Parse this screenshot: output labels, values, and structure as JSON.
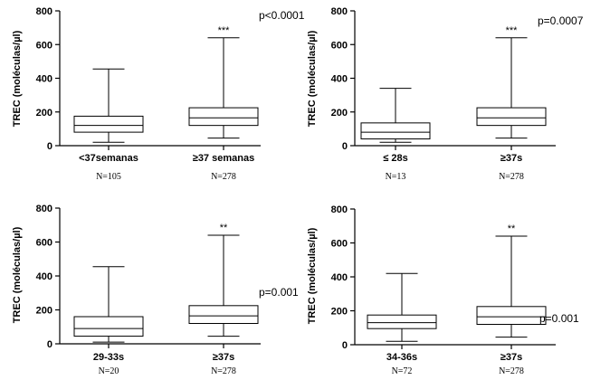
{
  "chart_data": [
    {
      "type": "box",
      "ylabel": "TREC (moléculas/µl)",
      "ylim": [
        0,
        800
      ],
      "yticks": [
        "0",
        "200",
        "400",
        "600",
        "800"
      ],
      "pvalue": "p<0.0001",
      "categories": [
        "<37semanas",
        "≥37 semanas"
      ],
      "significance": [
        "",
        "***"
      ],
      "n_labels": [
        "N=105",
        "N=278"
      ],
      "boxes": [
        {
          "min": 20,
          "q1": 80,
          "median": 120,
          "q3": 175,
          "max": 455
        },
        {
          "min": 45,
          "q1": 120,
          "median": 165,
          "q3": 225,
          "max": 640
        }
      ]
    },
    {
      "type": "box",
      "ylabel": "TREC (moléculas/µl)",
      "ylim": [
        0,
        800
      ],
      "yticks": [
        "0",
        "200",
        "400",
        "600",
        "800"
      ],
      "pvalue": "p=0.0007",
      "categories": [
        "≤ 28s",
        "≥37s"
      ],
      "significance": [
        "",
        "***"
      ],
      "n_labels": [
        "N=13",
        "N=278"
      ],
      "boxes": [
        {
          "min": 20,
          "q1": 40,
          "median": 80,
          "q3": 135,
          "max": 340
        },
        {
          "min": 45,
          "q1": 120,
          "median": 165,
          "q3": 225,
          "max": 640
        }
      ]
    },
    {
      "type": "box",
      "ylabel": "TREC (moléculas/µl)",
      "ylim": [
        0,
        800
      ],
      "yticks": [
        "0",
        "200",
        "400",
        "600",
        "800"
      ],
      "pvalue": "p=0.001",
      "categories": [
        "29-33s",
        "≥37s"
      ],
      "significance": [
        "",
        "**"
      ],
      "n_labels": [
        "N=20",
        "N=278"
      ],
      "boxes": [
        {
          "min": 10,
          "q1": 45,
          "median": 90,
          "q3": 160,
          "max": 455
        },
        {
          "min": 45,
          "q1": 120,
          "median": 165,
          "q3": 225,
          "max": 640
        }
      ]
    },
    {
      "type": "box",
      "ylabel": "TREC (moléculas/µl)",
      "ylim": [
        0,
        800
      ],
      "yticks": [
        "0",
        "200",
        "400",
        "600",
        "800"
      ],
      "pvalue": "p=0.001",
      "categories": [
        "34-36s",
        "≥37s"
      ],
      "significance": [
        "",
        "**"
      ],
      "n_labels": [
        "N=72",
        "N=278"
      ],
      "boxes": [
        {
          "min": 20,
          "q1": 95,
          "median": 130,
          "q3": 175,
          "max": 420
        },
        {
          "min": 45,
          "q1": 120,
          "median": 165,
          "q3": 225,
          "max": 640
        }
      ]
    }
  ]
}
